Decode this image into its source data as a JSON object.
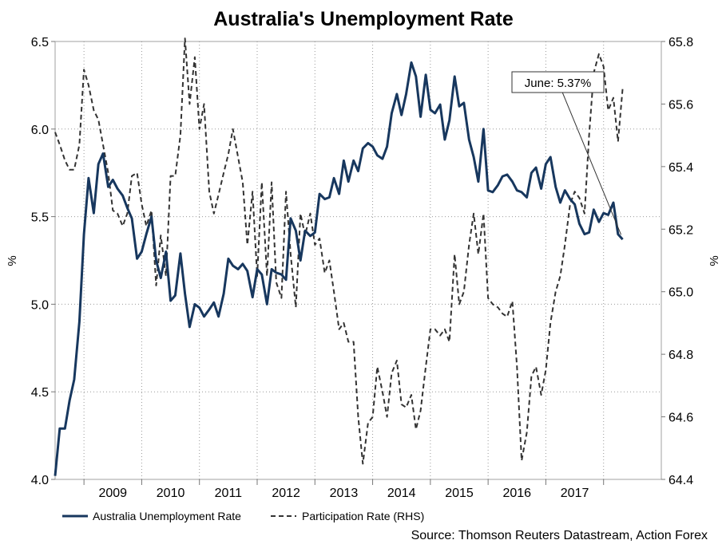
{
  "chart_data": {
    "type": "line",
    "title": "Australia's Unemployment Rate",
    "y_left_label": "%",
    "y_right_label": "%",
    "y_left_lim": [
      4.0,
      6.5
    ],
    "y_right_lim": [
      64.4,
      65.8
    ],
    "y_left_ticks": [
      "4.0",
      "4.5",
      "5.0",
      "5.5",
      "6.0",
      "6.5"
    ],
    "y_right_ticks": [
      "64.4",
      "64.6",
      "64.8",
      "65.0",
      "65.2",
      "65.4",
      "65.6",
      "65.8"
    ],
    "x_range": [
      2008.0,
      2018.5
    ],
    "x_tick_labels": [
      "2009",
      "2010",
      "2011",
      "2012",
      "2013",
      "2014",
      "2015",
      "2016",
      "2017"
    ],
    "grid": true,
    "legend_position": "bottom-left",
    "colors": {
      "unemployment": "#17375e",
      "participation": "#333333",
      "grid": "#999999"
    },
    "series": [
      {
        "name": "Australia Unemployment Rate",
        "axis": "left",
        "style": "solid",
        "points": [
          [
            2008.0,
            4.02
          ],
          [
            2008.08,
            4.29
          ],
          [
            2008.17,
            4.29
          ],
          [
            2008.25,
            4.45
          ],
          [
            2008.33,
            4.57
          ],
          [
            2008.42,
            4.9
          ],
          [
            2008.5,
            5.4
          ],
          [
            2008.58,
            5.72
          ],
          [
            2008.67,
            5.52
          ],
          [
            2008.75,
            5.8
          ],
          [
            2008.83,
            5.86
          ],
          [
            2008.92,
            5.67
          ],
          [
            2009.0,
            5.71
          ],
          [
            2009.08,
            5.66
          ],
          [
            2009.17,
            5.62
          ],
          [
            2009.25,
            5.55
          ],
          [
            2009.33,
            5.49
          ],
          [
            2009.42,
            5.26
          ],
          [
            2009.5,
            5.3
          ],
          [
            2009.58,
            5.4
          ],
          [
            2009.67,
            5.5
          ],
          [
            2009.75,
            5.25
          ],
          [
            2009.83,
            5.15
          ],
          [
            2009.92,
            5.3
          ],
          [
            2010.0,
            5.02
          ],
          [
            2010.08,
            5.05
          ],
          [
            2010.17,
            5.29
          ],
          [
            2010.25,
            5.06
          ],
          [
            2010.33,
            4.87
          ],
          [
            2010.42,
            5.0
          ],
          [
            2010.5,
            4.98
          ],
          [
            2010.58,
            4.93
          ],
          [
            2010.67,
            4.97
          ],
          [
            2010.75,
            5.01
          ],
          [
            2010.83,
            4.93
          ],
          [
            2010.92,
            5.06
          ],
          [
            2011.0,
            5.26
          ],
          [
            2011.08,
            5.22
          ],
          [
            2011.17,
            5.2
          ],
          [
            2011.25,
            5.23
          ],
          [
            2011.33,
            5.19
          ],
          [
            2011.42,
            5.04
          ],
          [
            2011.5,
            5.2
          ],
          [
            2011.58,
            5.17
          ],
          [
            2011.67,
            5.0
          ],
          [
            2011.75,
            5.2
          ],
          [
            2011.83,
            5.18
          ],
          [
            2011.92,
            5.17
          ],
          [
            2012.0,
            5.14
          ],
          [
            2012.08,
            5.49
          ],
          [
            2012.17,
            5.42
          ],
          [
            2012.25,
            5.25
          ],
          [
            2012.33,
            5.42
          ],
          [
            2012.42,
            5.39
          ],
          [
            2012.5,
            5.41
          ],
          [
            2012.58,
            5.63
          ],
          [
            2012.67,
            5.6
          ],
          [
            2012.75,
            5.61
          ],
          [
            2012.83,
            5.72
          ],
          [
            2012.92,
            5.63
          ],
          [
            2013.0,
            5.82
          ],
          [
            2013.08,
            5.7
          ],
          [
            2013.17,
            5.82
          ],
          [
            2013.25,
            5.76
          ],
          [
            2013.33,
            5.89
          ],
          [
            2013.42,
            5.92
          ],
          [
            2013.5,
            5.9
          ],
          [
            2013.58,
            5.85
          ],
          [
            2013.67,
            5.83
          ],
          [
            2013.75,
            5.9
          ],
          [
            2013.83,
            6.09
          ],
          [
            2013.92,
            6.2
          ],
          [
            2014.0,
            6.08
          ],
          [
            2014.08,
            6.2
          ],
          [
            2014.17,
            6.38
          ],
          [
            2014.25,
            6.3
          ],
          [
            2014.33,
            6.07
          ],
          [
            2014.42,
            6.31
          ],
          [
            2014.5,
            6.11
          ],
          [
            2014.58,
            6.09
          ],
          [
            2014.67,
            6.14
          ],
          [
            2014.75,
            5.94
          ],
          [
            2014.83,
            6.05
          ],
          [
            2014.92,
            6.3
          ],
          [
            2015.0,
            6.13
          ],
          [
            2015.08,
            6.15
          ],
          [
            2015.17,
            5.94
          ],
          [
            2015.25,
            5.84
          ],
          [
            2015.33,
            5.7
          ],
          [
            2015.42,
            6.0
          ],
          [
            2015.5,
            5.65
          ],
          [
            2015.58,
            5.64
          ],
          [
            2015.67,
            5.68
          ],
          [
            2015.75,
            5.73
          ],
          [
            2015.83,
            5.74
          ],
          [
            2015.92,
            5.7
          ],
          [
            2016.0,
            5.65
          ],
          [
            2016.08,
            5.64
          ],
          [
            2016.17,
            5.61
          ],
          [
            2016.25,
            5.75
          ],
          [
            2016.33,
            5.78
          ],
          [
            2016.42,
            5.66
          ],
          [
            2016.5,
            5.8
          ],
          [
            2016.58,
            5.84
          ],
          [
            2016.67,
            5.67
          ],
          [
            2016.75,
            5.58
          ],
          [
            2016.83,
            5.65
          ],
          [
            2016.92,
            5.6
          ],
          [
            2017.0,
            5.57
          ],
          [
            2017.08,
            5.46
          ],
          [
            2017.17,
            5.4
          ],
          [
            2017.25,
            5.41
          ],
          [
            2017.33,
            5.54
          ],
          [
            2017.42,
            5.47
          ],
          [
            2017.5,
            5.52
          ],
          [
            2017.58,
            5.51
          ],
          [
            2017.67,
            5.58
          ],
          [
            2017.75,
            5.4
          ],
          [
            2017.83,
            5.37
          ]
        ]
      },
      {
        "name": "Participation Rate (RHS)",
        "axis": "right",
        "style": "dashed",
        "points": [
          [
            2008.0,
            65.51
          ],
          [
            2008.08,
            65.47
          ],
          [
            2008.17,
            65.42
          ],
          [
            2008.25,
            65.39
          ],
          [
            2008.33,
            65.39
          ],
          [
            2008.42,
            65.47
          ],
          [
            2008.5,
            65.71
          ],
          [
            2008.58,
            65.66
          ],
          [
            2008.67,
            65.58
          ],
          [
            2008.75,
            65.55
          ],
          [
            2008.83,
            65.47
          ],
          [
            2008.92,
            65.38
          ],
          [
            2009.0,
            65.26
          ],
          [
            2009.08,
            65.25
          ],
          [
            2009.17,
            65.21
          ],
          [
            2009.25,
            65.25
          ],
          [
            2009.33,
            65.37
          ],
          [
            2009.42,
            65.38
          ],
          [
            2009.5,
            65.28
          ],
          [
            2009.58,
            65.21
          ],
          [
            2009.67,
            65.26
          ],
          [
            2009.75,
            65.02
          ],
          [
            2009.83,
            65.18
          ],
          [
            2009.92,
            65.05
          ],
          [
            2010.0,
            65.37
          ],
          [
            2010.08,
            65.37
          ],
          [
            2010.17,
            65.5
          ],
          [
            2010.25,
            65.81
          ],
          [
            2010.33,
            65.6
          ],
          [
            2010.42,
            65.75
          ],
          [
            2010.5,
            65.52
          ],
          [
            2010.58,
            65.6
          ],
          [
            2010.67,
            65.32
          ],
          [
            2010.75,
            65.25
          ],
          [
            2010.83,
            65.31
          ],
          [
            2010.92,
            65.38
          ],
          [
            2011.0,
            65.44
          ],
          [
            2011.08,
            65.52
          ],
          [
            2011.17,
            65.43
          ],
          [
            2011.25,
            65.35
          ],
          [
            2011.33,
            65.15
          ],
          [
            2011.42,
            65.32
          ],
          [
            2011.5,
            65.05
          ],
          [
            2011.58,
            65.35
          ],
          [
            2011.67,
            65.05
          ],
          [
            2011.75,
            65.35
          ],
          [
            2011.83,
            65.03
          ],
          [
            2011.92,
            64.98
          ],
          [
            2012.0,
            65.32
          ],
          [
            2012.08,
            65.12
          ],
          [
            2012.17,
            64.95
          ],
          [
            2012.25,
            65.25
          ],
          [
            2012.33,
            65.18
          ],
          [
            2012.42,
            65.25
          ],
          [
            2012.5,
            65.15
          ],
          [
            2012.58,
            65.17
          ],
          [
            2012.67,
            65.06
          ],
          [
            2012.75,
            65.1
          ],
          [
            2012.83,
            65.0
          ],
          [
            2012.92,
            64.88
          ],
          [
            2013.0,
            64.9
          ],
          [
            2013.08,
            64.84
          ],
          [
            2013.17,
            64.84
          ],
          [
            2013.25,
            64.6
          ],
          [
            2013.33,
            64.45
          ],
          [
            2013.42,
            64.58
          ],
          [
            2013.5,
            64.6
          ],
          [
            2013.58,
            64.76
          ],
          [
            2013.67,
            64.68
          ],
          [
            2013.75,
            64.6
          ],
          [
            2013.83,
            64.74
          ],
          [
            2013.92,
            64.78
          ],
          [
            2014.0,
            64.64
          ],
          [
            2014.08,
            64.63
          ],
          [
            2014.17,
            64.67
          ],
          [
            2014.25,
            64.56
          ],
          [
            2014.33,
            64.62
          ],
          [
            2014.42,
            64.76
          ],
          [
            2014.5,
            64.88
          ],
          [
            2014.58,
            64.88
          ],
          [
            2014.67,
            64.86
          ],
          [
            2014.75,
            64.88
          ],
          [
            2014.83,
            64.84
          ],
          [
            2014.92,
            65.12
          ],
          [
            2015.0,
            64.96
          ],
          [
            2015.08,
            65.0
          ],
          [
            2015.17,
            65.15
          ],
          [
            2015.25,
            65.25
          ],
          [
            2015.33,
            65.12
          ],
          [
            2015.42,
            65.25
          ],
          [
            2015.5,
            64.98
          ],
          [
            2015.58,
            64.96
          ],
          [
            2015.67,
            64.95
          ],
          [
            2015.75,
            64.93
          ],
          [
            2015.83,
            64.92
          ],
          [
            2015.92,
            64.97
          ],
          [
            2016.0,
            64.76
          ],
          [
            2016.08,
            64.46
          ],
          [
            2016.17,
            64.55
          ],
          [
            2016.25,
            64.73
          ],
          [
            2016.33,
            64.76
          ],
          [
            2016.42,
            64.67
          ],
          [
            2016.5,
            64.75
          ],
          [
            2016.58,
            64.9
          ],
          [
            2016.67,
            65.0
          ],
          [
            2016.75,
            65.05
          ],
          [
            2016.83,
            65.15
          ],
          [
            2016.92,
            65.28
          ],
          [
            2017.0,
            65.32
          ],
          [
            2017.08,
            65.3
          ],
          [
            2017.17,
            65.25
          ],
          [
            2017.25,
            65.5
          ],
          [
            2017.33,
            65.7
          ],
          [
            2017.42,
            65.76
          ],
          [
            2017.5,
            65.72
          ],
          [
            2017.58,
            65.58
          ],
          [
            2017.67,
            65.62
          ],
          [
            2017.75,
            65.48
          ],
          [
            2017.83,
            65.65
          ]
        ]
      }
    ],
    "annotation": {
      "text": "June: 5.37%",
      "x": 2017.83,
      "y": 5.37
    }
  },
  "legend": {
    "items": [
      {
        "label": "Australia Unemployment Rate",
        "style": "solid"
      },
      {
        "label": "Participation Rate (RHS)",
        "style": "dashed"
      }
    ]
  },
  "source": "Source: Thomson Reuters Datastream, Action Forex"
}
